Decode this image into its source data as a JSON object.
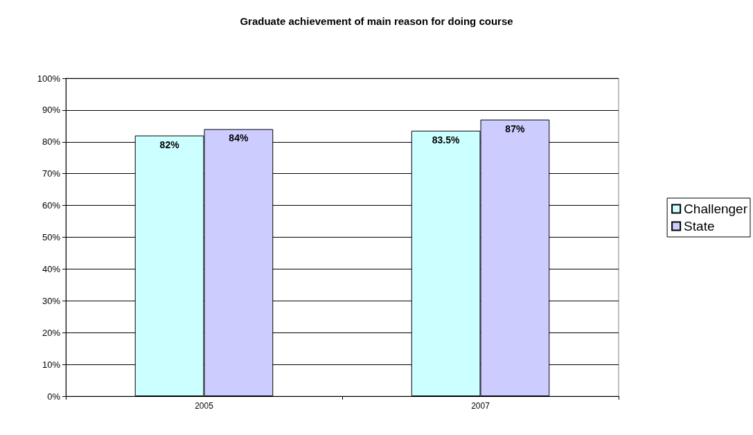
{
  "chart_data": {
    "type": "bar",
    "title": "Graduate achievement of main reason for doing course",
    "categories": [
      "2005",
      "2007"
    ],
    "series": [
      {
        "name": "Challenger",
        "color": "#ccffff",
        "values": [
          82,
          83.5
        ],
        "value_labels": [
          "82%",
          "83.5%"
        ]
      },
      {
        "name": "State",
        "color": "#ccccff",
        "values": [
          84,
          87
        ],
        "value_labels": [
          "84%",
          "87%"
        ]
      }
    ],
    "ylim": [
      0,
      100
    ],
    "yticks": [
      {
        "value": 0,
        "label": "0%"
      },
      {
        "value": 10,
        "label": "10%"
      },
      {
        "value": 20,
        "label": "20%"
      },
      {
        "value": 30,
        "label": "30%"
      },
      {
        "value": 40,
        "label": "40%"
      },
      {
        "value": 50,
        "label": "50%"
      },
      {
        "value": 60,
        "label": "60%"
      },
      {
        "value": 70,
        "label": "70%"
      },
      {
        "value": 80,
        "label": "80%"
      },
      {
        "value": 90,
        "label": "90%"
      },
      {
        "value": 100,
        "label": "100%"
      }
    ],
    "grid": "y",
    "legend": "right"
  }
}
